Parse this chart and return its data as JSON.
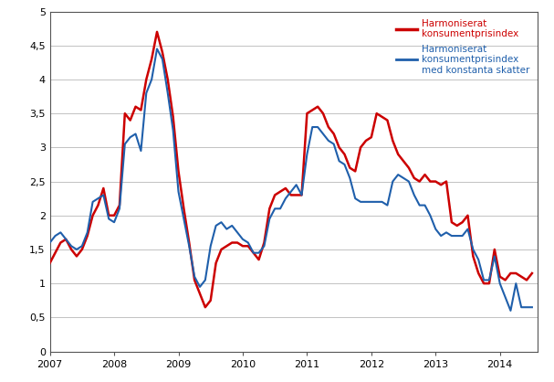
{
  "ylim": [
    0,
    5
  ],
  "yticks": [
    0,
    0.5,
    1.0,
    1.5,
    2.0,
    2.5,
    3.0,
    3.5,
    4.0,
    4.5,
    5.0
  ],
  "ytick_labels": [
    "0",
    "0,5",
    "1",
    "1,5",
    "2",
    "2,5",
    "3",
    "3,5",
    "4",
    "4,5",
    "5"
  ],
  "xtick_years": [
    2007,
    2008,
    2009,
    2010,
    2011,
    2012,
    2013,
    2014
  ],
  "legend1_label": "Harmoniserat\nkonsumentprisindex",
  "legend2_label": "Harmoniserat\nkonsumentprisindex\nmed konstanta skatter",
  "color_red": "#CC0000",
  "color_blue": "#1F5FAB",
  "background_color": "#ffffff",
  "hicp": [
    1.3,
    1.45,
    1.6,
    1.65,
    1.5,
    1.4,
    1.5,
    1.7,
    2.0,
    2.15,
    2.4,
    2.0,
    2.0,
    2.15,
    3.5,
    3.4,
    3.6,
    3.55,
    4.0,
    4.3,
    4.7,
    4.4,
    4.0,
    3.45,
    2.65,
    2.1,
    1.6,
    1.05,
    0.85,
    0.65,
    0.75,
    1.3,
    1.5,
    1.55,
    1.6,
    1.6,
    1.55,
    1.55,
    1.45,
    1.35,
    1.6,
    2.1,
    2.3,
    2.35,
    2.4,
    2.3,
    2.3,
    2.3,
    3.5,
    3.55,
    3.6,
    3.5,
    3.3,
    3.2,
    3.0,
    2.9,
    2.7,
    2.65,
    3.0,
    3.1,
    3.15,
    3.5,
    3.45,
    3.4,
    3.1,
    2.9,
    2.8,
    2.7,
    2.55,
    2.5,
    2.6,
    2.5,
    2.5,
    2.45,
    2.5,
    1.9,
    1.85,
    1.9,
    2.0,
    1.4,
    1.15,
    1.0,
    1.0,
    1.5,
    1.1,
    1.05,
    1.15,
    1.15,
    1.1,
    1.05,
    1.15
  ],
  "hicp_ct": [
    1.6,
    1.7,
    1.75,
    1.65,
    1.55,
    1.5,
    1.55,
    1.75,
    2.2,
    2.25,
    2.3,
    1.95,
    1.9,
    2.1,
    3.05,
    3.15,
    3.2,
    2.95,
    3.8,
    4.0,
    4.45,
    4.3,
    3.8,
    3.25,
    2.35,
    1.95,
    1.55,
    1.1,
    0.95,
    1.05,
    1.55,
    1.85,
    1.9,
    1.8,
    1.85,
    1.75,
    1.65,
    1.6,
    1.45,
    1.45,
    1.55,
    1.95,
    2.1,
    2.1,
    2.25,
    2.35,
    2.45,
    2.3,
    2.9,
    3.3,
    3.3,
    3.2,
    3.1,
    3.05,
    2.8,
    2.75,
    2.55,
    2.25,
    2.2,
    2.2,
    2.2,
    2.2,
    2.2,
    2.15,
    2.5,
    2.6,
    2.55,
    2.5,
    2.3,
    2.15,
    2.15,
    2.0,
    1.8,
    1.7,
    1.75,
    1.7,
    1.7,
    1.7,
    1.8,
    1.5,
    1.35,
    1.05,
    1.05,
    1.4,
    1.0,
    0.8,
    0.6,
    1.0,
    0.65,
    0.65,
    0.65
  ]
}
